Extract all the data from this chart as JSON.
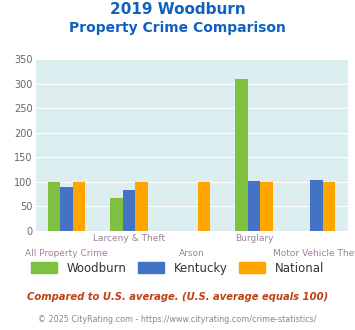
{
  "title_line1": "2019 Woodburn",
  "title_line2": "Property Crime Comparison",
  "categories": [
    "All Property Crime",
    "Larceny & Theft",
    "Arson",
    "Burglary",
    "Motor Vehicle Theft"
  ],
  "woodburn": [
    100,
    68,
    0,
    310,
    0
  ],
  "kentucky": [
    90,
    84,
    0,
    103,
    105
  ],
  "national": [
    100,
    100,
    100,
    100,
    100
  ],
  "woodburn_color": "#80c040",
  "kentucky_color": "#4472c4",
  "national_color": "#ffa500",
  "bg_color": "#ddeef0",
  "title_color": "#1060c0",
  "xlabel_top_color": "#a080a0",
  "xlabel_bot_color": "#a080a0",
  "footnote1": "Compared to U.S. average. (U.S. average equals 100)",
  "footnote2": "© 2025 CityRating.com - https://www.cityrating.com/crime-statistics/",
  "footnote1_color": "#c04010",
  "footnote2_color": "#888888",
  "ylim": [
    0,
    350
  ],
  "yticks": [
    0,
    50,
    100,
    150,
    200,
    250,
    300,
    350
  ],
  "bar_width": 0.2
}
